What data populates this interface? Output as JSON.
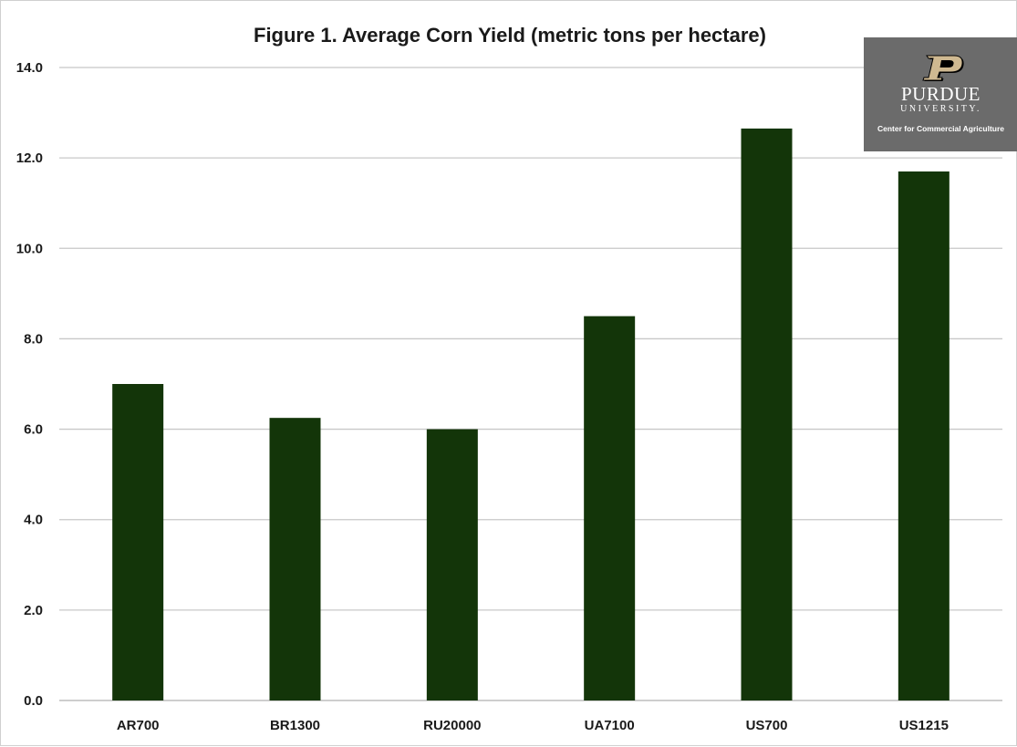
{
  "chart_data": {
    "type": "bar",
    "title": "Figure 1. Average Corn Yield (metric tons per hectare)",
    "xlabel": "",
    "ylabel": "",
    "categories": [
      "AR700",
      "BR1300",
      "RU20000",
      "UA7100",
      "US700",
      "US1215"
    ],
    "values": [
      7.0,
      6.25,
      6.0,
      8.5,
      12.65,
      11.7
    ],
    "ylim": [
      0,
      14
    ],
    "yticks": [
      "0.0",
      "2.0",
      "4.0",
      "6.0",
      "8.0",
      "10.0",
      "12.0",
      "14.0"
    ],
    "grid": true,
    "legend": "none",
    "bar_color": "#133509"
  },
  "logo": {
    "name": "PURDUE",
    "sub": "UNIVERSITY.",
    "center": "Center for Commercial Agriculture",
    "background": "#6b6b6b",
    "mark_color": "#cfb991"
  }
}
